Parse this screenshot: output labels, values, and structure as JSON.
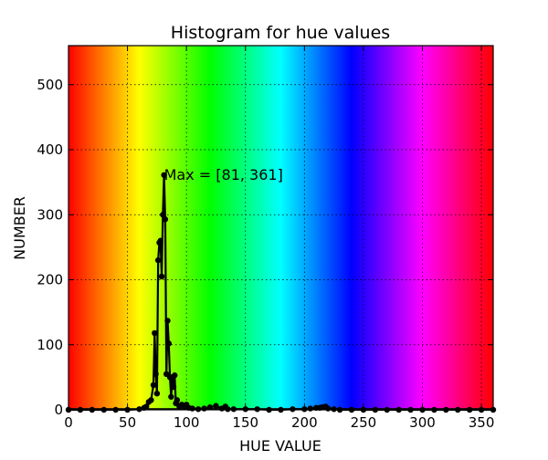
{
  "chart_data": {
    "type": "line",
    "title": "Histogram for hue values",
    "xlabel": "HUE VALUE",
    "ylabel": "NUMBER",
    "xlim": [
      0,
      360
    ],
    "ylim": [
      0,
      560
    ],
    "xticks": [
      0,
      50,
      100,
      150,
      200,
      250,
      300,
      350
    ],
    "yticks": [
      0,
      100,
      200,
      300,
      400,
      500
    ],
    "xtick_labels": [
      "0",
      "50",
      "100",
      "150",
      "200",
      "250",
      "300",
      "350"
    ],
    "ytick_labels": [
      "0",
      "100",
      "200",
      "300",
      "400",
      "500"
    ],
    "grid": true,
    "background": "hue spectrum (red → yellow → green → cyan → blue → magenta → red)",
    "line_color": "#000000",
    "annotation": {
      "text": "Max = [81, 361]",
      "x": 81,
      "y": 361
    },
    "series": [
      {
        "x": [
          0,
          10,
          20,
          30,
          40,
          50,
          60,
          64,
          66,
          68,
          70,
          72,
          73,
          74,
          75,
          76,
          77,
          78,
          79,
          80,
          81,
          82,
          83,
          84,
          85,
          86,
          87,
          88,
          89,
          90,
          91,
          92,
          94,
          96,
          98,
          100,
          102,
          105,
          110,
          115,
          120,
          125,
          130,
          133,
          135,
          140,
          150,
          160,
          170,
          180,
          190,
          200,
          205,
          210,
          213,
          215,
          218,
          220,
          225,
          230,
          240,
          250,
          260,
          270,
          280,
          290,
          300,
          310,
          320,
          330,
          340,
          350,
          360
        ],
        "y": [
          0,
          0,
          0,
          0,
          0,
          0,
          1,
          3,
          5,
          12,
          15,
          38,
          118,
          55,
          25,
          230,
          257,
          260,
          205,
          300,
          361,
          293,
          55,
          137,
          102,
          50,
          20,
          50,
          35,
          53,
          10,
          15,
          5,
          8,
          6,
          8,
          3,
          2,
          1,
          2,
          4,
          6,
          2,
          5,
          1,
          1,
          1,
          1,
          0,
          0,
          1,
          1,
          2,
          3,
          3,
          4,
          5,
          2,
          1,
          0,
          0,
          0,
          0,
          0,
          0,
          0,
          0,
          0,
          0,
          0,
          0,
          0,
          0
        ]
      }
    ]
  }
}
